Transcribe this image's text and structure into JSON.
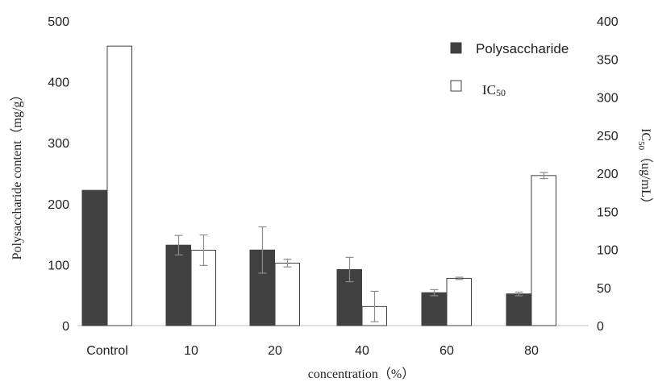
{
  "chart_data": {
    "type": "bar",
    "title": "",
    "xlabel": "concentration（%）",
    "ylabel": "Polysaccharide content（mg/g）",
    "y2label_prefix": "IC",
    "y2label_sub": "50",
    "y2label_suffix": "（ug/mL）",
    "categories": [
      "Control",
      "10",
      "20",
      "40",
      "60",
      "80"
    ],
    "ylim": [
      0,
      500
    ],
    "y_ticks": [
      "0",
      "100",
      "200",
      "300",
      "400",
      "500"
    ],
    "y2lim": [
      0,
      400
    ],
    "y2_ticks": [
      "0",
      "50",
      "100",
      "150",
      "200",
      "250",
      "300",
      "350",
      "400"
    ],
    "grid": false,
    "legend_position": "top-right",
    "series": [
      {
        "name": "Polysaccharide",
        "axis": "left",
        "fill": "#404040",
        "values": [
          222,
          132,
          124,
          92,
          54,
          52
        ],
        "errors": [
          0,
          16,
          38,
          20,
          5,
          3
        ]
      },
      {
        "name_main": "IC",
        "name_sub": "50",
        "axis": "right",
        "fill": "#ffffff",
        "values": [
          367,
          99,
          82,
          25,
          62,
          197
        ],
        "errors": [
          0,
          20,
          5,
          20,
          1.5,
          4
        ]
      }
    ]
  }
}
